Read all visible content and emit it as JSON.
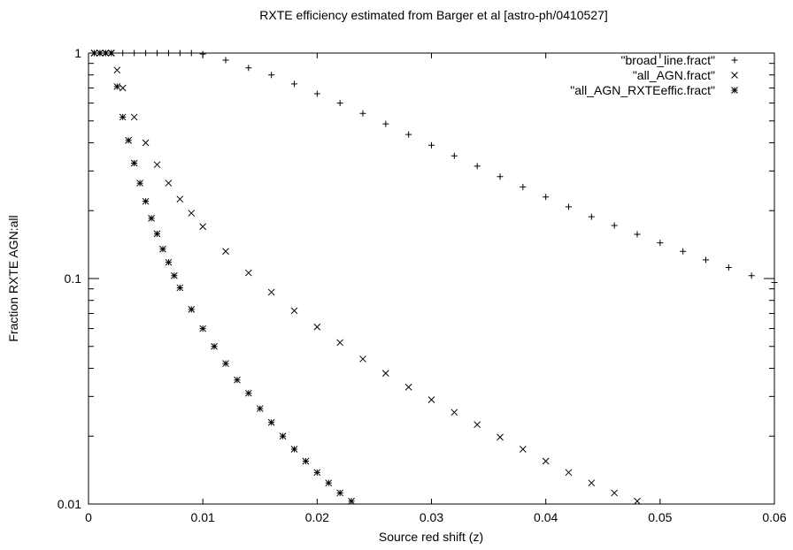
{
  "chart_data": {
    "type": "scatter",
    "title": "RXTE efficiency estimated from Barger et al [astro-ph/0410527]",
    "xlabel": "Source red shift (z)",
    "ylabel": "Fraction RXTE AGN:all",
    "xlim": [
      0,
      0.06
    ],
    "ylim": [
      0.01,
      1
    ],
    "yscale": "log",
    "grid": false,
    "legend_position": "top-right",
    "x_ticks": [
      "0",
      "0.01",
      "0.02",
      "0.03",
      "0.04",
      "0.05",
      "0.06"
    ],
    "y_ticks": [
      "0.01",
      "0.1",
      "1"
    ],
    "series": [
      {
        "name": "\"broad_line.fract\"",
        "marker": "plus",
        "x": [
          0.0005,
          0.001,
          0.0015,
          0.002,
          0.003,
          0.004,
          0.005,
          0.006,
          0.007,
          0.008,
          0.009,
          0.01,
          0.012,
          0.014,
          0.016,
          0.018,
          0.02,
          0.022,
          0.024,
          0.026,
          0.028,
          0.03,
          0.032,
          0.034,
          0.036,
          0.038,
          0.04,
          0.042,
          0.044,
          0.046,
          0.048,
          0.05,
          0.052,
          0.054,
          0.056,
          0.058,
          0.06
        ],
        "y": [
          1.0,
          1.0,
          1.0,
          1.0,
          1.0,
          1.0,
          1.0,
          1.0,
          1.0,
          1.0,
          1.0,
          0.99,
          0.93,
          0.86,
          0.8,
          0.73,
          0.66,
          0.6,
          0.54,
          0.485,
          0.435,
          0.39,
          0.35,
          0.315,
          0.283,
          0.255,
          0.23,
          0.208,
          0.188,
          0.172,
          0.157,
          0.144,
          0.132,
          0.121,
          0.112,
          0.103,
          0.096
        ]
      },
      {
        "name": "\"all_AGN.fract\"",
        "marker": "cross",
        "x": [
          0.0005,
          0.001,
          0.0015,
          0.002,
          0.0025,
          0.003,
          0.004,
          0.005,
          0.006,
          0.007,
          0.008,
          0.009,
          0.01,
          0.012,
          0.014,
          0.016,
          0.018,
          0.02,
          0.022,
          0.024,
          0.026,
          0.028,
          0.03,
          0.032,
          0.034,
          0.036,
          0.038,
          0.04,
          0.042,
          0.044,
          0.046,
          0.048,
          0.0495
        ],
        "y": [
          1.0,
          1.0,
          1.0,
          1.0,
          0.84,
          0.7,
          0.52,
          0.4,
          0.32,
          0.265,
          0.225,
          0.195,
          0.17,
          0.132,
          0.106,
          0.087,
          0.072,
          0.061,
          0.052,
          0.044,
          0.038,
          0.033,
          0.029,
          0.0255,
          0.0225,
          0.0198,
          0.0175,
          0.0155,
          0.0138,
          0.0124,
          0.0112,
          0.0103,
          0.0099
        ]
      },
      {
        "name": "\"all_AGN_RXTEeffic.fract\"",
        "marker": "star",
        "x": [
          0.0005,
          0.001,
          0.0015,
          0.002,
          0.0025,
          0.003,
          0.0035,
          0.004,
          0.0045,
          0.005,
          0.0055,
          0.006,
          0.0065,
          0.007,
          0.0075,
          0.008,
          0.009,
          0.01,
          0.011,
          0.012,
          0.013,
          0.014,
          0.015,
          0.016,
          0.017,
          0.018,
          0.019,
          0.02,
          0.021,
          0.022,
          0.023,
          0.024
        ],
        "y": [
          1.0,
          1.0,
          1.0,
          1.0,
          0.71,
          0.52,
          0.41,
          0.325,
          0.265,
          0.22,
          0.185,
          0.158,
          0.135,
          0.118,
          0.103,
          0.091,
          0.073,
          0.06,
          0.05,
          0.042,
          0.0355,
          0.031,
          0.0265,
          0.023,
          0.02,
          0.0175,
          0.0155,
          0.0138,
          0.0124,
          0.0112,
          0.0103,
          0.0097
        ]
      }
    ]
  }
}
